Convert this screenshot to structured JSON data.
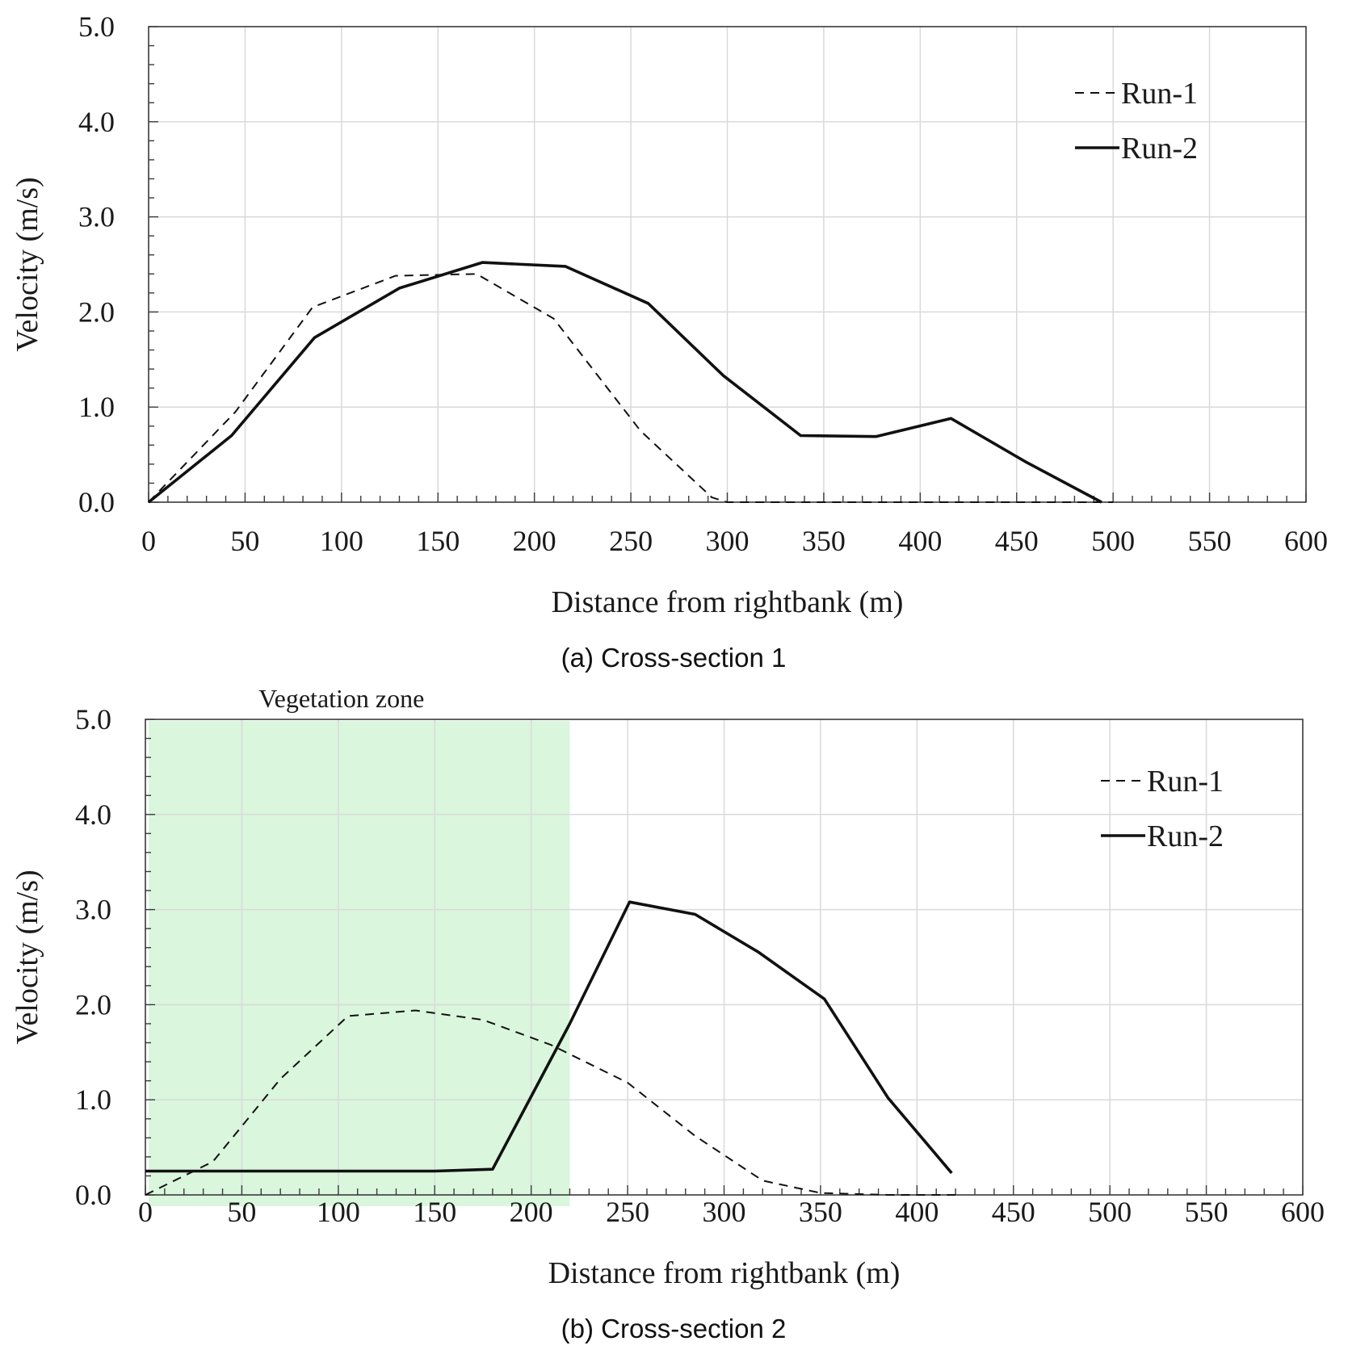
{
  "chart_data": [
    {
      "type": "line",
      "caption": "(a)  Cross-section  1",
      "xlabel": "Distance from rightbank (m)",
      "ylabel": "Velocity (m/s)",
      "xlim": [
        0,
        600
      ],
      "ylim": [
        0,
        5
      ],
      "xticks": [
        0,
        50,
        100,
        150,
        200,
        250,
        300,
        350,
        400,
        450,
        500,
        550,
        600
      ],
      "yticks": [
        0.0,
        1.0,
        2.0,
        3.0,
        4.0,
        5.0
      ],
      "grid": true,
      "legend_position": "top-right",
      "series": [
        {
          "name": "Run-1",
          "style": "dashed",
          "x": [
            0,
            45,
            85,
            128,
            170,
            210,
            255,
            292,
            300,
            350,
            400,
            450,
            500
          ],
          "y": [
            0.0,
            0.95,
            2.05,
            2.38,
            2.4,
            1.93,
            0.75,
            0.05,
            0.0,
            0.0,
            0.0,
            0.0,
            0.0
          ]
        },
        {
          "name": "Run-2",
          "style": "solid",
          "x": [
            0,
            43,
            86,
            130,
            173,
            216,
            259,
            298,
            338,
            377,
            416,
            455,
            494
          ],
          "y": [
            0.0,
            0.7,
            1.73,
            2.25,
            2.52,
            2.48,
            2.09,
            1.33,
            0.7,
            0.69,
            0.88,
            0.42,
            0.0
          ]
        }
      ]
    },
    {
      "type": "line",
      "caption": "(b)  Cross-section  2",
      "xlabel": "Distance from rightbank (m)",
      "ylabel": "Velocity (m/s)",
      "xlim": [
        0,
        600
      ],
      "ylim": [
        0,
        5
      ],
      "xticks": [
        0,
        50,
        100,
        150,
        200,
        250,
        300,
        350,
        400,
        450,
        500,
        550,
        600
      ],
      "yticks": [
        0.0,
        1.0,
        2.0,
        3.0,
        4.0,
        5.0
      ],
      "grid": true,
      "legend_position": "top-right",
      "annotation": {
        "label": "Vegetation zone",
        "x_range": [
          0,
          220
        ],
        "color": "#d4f5d7"
      },
      "series": [
        {
          "name": "Run-1",
          "style": "dashed",
          "x": [
            0,
            35,
            70,
            105,
            140,
            175,
            210,
            250,
            285,
            320,
            350,
            385,
            420
          ],
          "y": [
            0.0,
            0.35,
            1.22,
            1.88,
            1.94,
            1.84,
            1.58,
            1.18,
            0.62,
            0.15,
            0.02,
            0.0,
            0.0
          ]
        },
        {
          "name": "Run-2",
          "style": "solid",
          "x": [
            0,
            50,
            100,
            150,
            180,
            220,
            251,
            285,
            318,
            352,
            385,
            418
          ],
          "y": [
            0.25,
            0.25,
            0.25,
            0.25,
            0.27,
            1.8,
            3.08,
            2.95,
            2.55,
            2.06,
            1.02,
            0.23
          ]
        }
      ]
    }
  ]
}
